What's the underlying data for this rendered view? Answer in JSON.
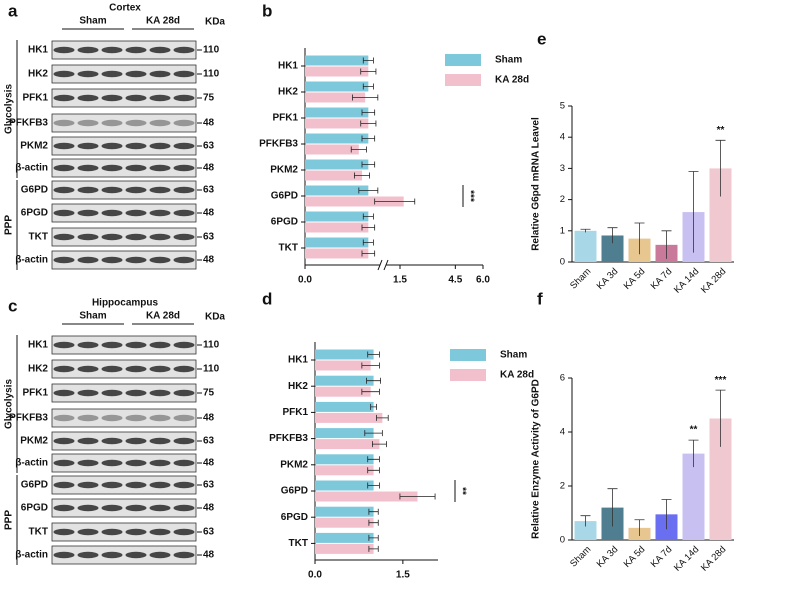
{
  "blots": [
    {
      "panel": "a",
      "title": "Cortex",
      "groups": [
        "Sham",
        "KA 28d"
      ],
      "unit": "KDa",
      "sections": [
        {
          "name": "Glycolysis",
          "rows": [
            {
              "protein": "HK1",
              "kda": 110
            },
            {
              "protein": "HK2",
              "kda": 110
            },
            {
              "protein": "PFK1",
              "kda": 75
            },
            {
              "protein": "PFKFB3",
              "kda": 48
            },
            {
              "protein": "PKM2",
              "kda": 63
            },
            {
              "protein": "β-actin",
              "kda": 48
            }
          ]
        },
        {
          "name": "PPP",
          "rows": [
            {
              "protein": "G6PD",
              "kda": 63
            },
            {
              "protein": "6PGD",
              "kda": 48
            },
            {
              "protein": "TKT",
              "kda": 63
            },
            {
              "protein": "β-actin",
              "kda": 48
            }
          ]
        }
      ]
    },
    {
      "panel": "c",
      "title": "Hippocampus",
      "groups": [
        "Sham",
        "KA 28d"
      ],
      "unit": "KDa",
      "sections": [
        {
          "name": "Glycolysis",
          "rows": [
            {
              "protein": "HK1",
              "kda": 110
            },
            {
              "protein": "HK2",
              "kda": 110
            },
            {
              "protein": "PFK1",
              "kda": 75
            },
            {
              "protein": "PFKFB3",
              "kda": 48
            },
            {
              "protein": "PKM2",
              "kda": 63
            },
            {
              "protein": "β-actin",
              "kda": 48
            }
          ]
        },
        {
          "name": "PPP",
          "rows": [
            {
              "protein": "G6PD",
              "kda": 63
            },
            {
              "protein": "6PGD",
              "kda": 48
            },
            {
              "protein": "TKT",
              "kda": 63
            },
            {
              "protein": "β-actin",
              "kda": 48
            }
          ]
        }
      ]
    }
  ],
  "chart_data": [
    {
      "type": "hbar",
      "panel": "b",
      "categories": [
        "HK1",
        "HK2",
        "PFK1",
        "PFKFB3",
        "PKM2",
        "G6PD",
        "6PGD",
        "TKT"
      ],
      "series": [
        {
          "name": "Sham",
          "color": "#7ec8dc",
          "values": [
            1.0,
            1.0,
            1.0,
            1.0,
            1.0,
            1.0,
            1.0,
            1.0
          ],
          "errors": [
            0.08,
            0.08,
            0.1,
            0.1,
            0.1,
            0.15,
            0.08,
            0.08
          ]
        },
        {
          "name": "KA 28d",
          "color": "#f2c0cc",
          "values": [
            1.0,
            0.95,
            1.0,
            0.85,
            0.9,
            1.7,
            1.0,
            1.0
          ],
          "errors": [
            0.12,
            0.2,
            0.12,
            0.12,
            0.12,
            0.6,
            0.1,
            0.1
          ]
        }
      ],
      "xlim": [
        0,
        6
      ],
      "xticks": [
        {
          "value": 0,
          "label": "0.0"
        },
        1.5,
        {
          "value": 4.5,
          "label": "4.5"
        },
        {
          "value": 6,
          "label": "6.0"
        }
      ],
      "axis_break": 1.5,
      "annotations": [
        {
          "text": "***",
          "category": "G6PD"
        }
      ]
    },
    {
      "type": "hbar",
      "panel": "d",
      "categories": [
        "HK1",
        "HK2",
        "PFK1",
        "PFKFB3",
        "PKM2",
        "G6PD",
        "6PGD",
        "TKT"
      ],
      "series": [
        {
          "name": "Sham",
          "color": "#7ec8dc",
          "values": [
            1.0,
            1.0,
            1.0,
            1.0,
            1.0,
            1.0,
            1.0,
            1.0
          ],
          "errors": [
            0.1,
            0.12,
            0.05,
            0.15,
            0.1,
            0.1,
            0.08,
            0.08
          ]
        },
        {
          "name": "KA 28d",
          "color": "#f2c0cc",
          "values": [
            0.95,
            0.95,
            1.15,
            1.1,
            1.0,
            1.75,
            1.0,
            1.0
          ],
          "errors": [
            0.15,
            0.15,
            0.1,
            0.12,
            0.1,
            0.3,
            0.08,
            0.08
          ]
        }
      ],
      "xlim": [
        0,
        2.1
      ],
      "xticks": [
        {
          "value": 0,
          "label": "0.0"
        },
        1.5
      ],
      "annotations": [
        {
          "text": "**",
          "category": "G6PD"
        }
      ]
    },
    {
      "type": "bar",
      "panel": "e",
      "ylabel": "Relative G6pd mRNA Leavel",
      "categories": [
        "Sham",
        "KA 3d",
        "KA 5d",
        "KA 7d",
        "KA 14d",
        "KA 28d"
      ],
      "values": [
        1.0,
        0.85,
        0.75,
        0.55,
        1.6,
        3.0
      ],
      "errors": [
        0.05,
        0.25,
        0.5,
        0.45,
        1.3,
        0.9
      ],
      "colors": [
        "#a8d8e8",
        "#4e7e90",
        "#e8c690",
        "#c97a9a",
        "#c8c0f0",
        "#f0c8d0"
      ],
      "ylim": [
        0,
        5
      ],
      "yticks": [
        0,
        1,
        2,
        3,
        4,
        5
      ],
      "annotations": [
        {
          "text": "**",
          "category": "KA 28d",
          "color": "#2b4c8c"
        }
      ]
    },
    {
      "type": "bar",
      "panel": "f",
      "ylabel": "Relative Enzyme Activity of G6PD",
      "categories": [
        "Sham",
        "KA 3d",
        "KA 5d",
        "KA 7d",
        "KA 14d",
        "KA 28d"
      ],
      "values": [
        0.7,
        1.2,
        0.45,
        0.95,
        3.2,
        4.5
      ],
      "errors": [
        0.2,
        0.7,
        0.3,
        0.55,
        0.5,
        1.05
      ],
      "colors": [
        "#a8d8e8",
        "#4e7e90",
        "#e8c690",
        "#6a6ef0",
        "#c8c0f0",
        "#f0c8d0"
      ],
      "ylim": [
        0,
        6
      ],
      "yticks": [
        0,
        2,
        4,
        6
      ],
      "annotations": [
        {
          "text": "**",
          "category": "KA 14d",
          "color": "#111"
        },
        {
          "text": "***",
          "category": "KA 28d",
          "color": "#111"
        }
      ]
    }
  ]
}
